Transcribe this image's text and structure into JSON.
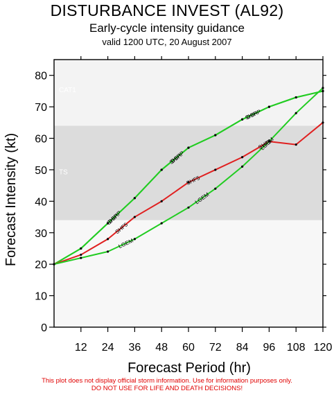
{
  "header": {
    "title": "DISTURBANCE INVEST (AL92)",
    "subtitle": "Early-cycle intensity guidance",
    "valid": "valid 1200 UTC, 20 August 2007"
  },
  "disclaimer": {
    "line1": "This plot does not display official storm information. Use for information purposes only.",
    "line2": "DO NOT USE FOR LIFE AND DEATH DECISIONS!"
  },
  "chart_data": {
    "type": "line",
    "xlabel": "Forecast Period (hr)",
    "ylabel": "Forecast Intensity (kt)",
    "xlim": [
      0,
      120
    ],
    "ylim": [
      0,
      85
    ],
    "xticks": [
      12,
      24,
      36,
      48,
      60,
      72,
      84,
      96,
      108,
      120
    ],
    "yticks": [
      0,
      10,
      20,
      30,
      40,
      50,
      60,
      70,
      80
    ],
    "bands": [
      {
        "name": "TS",
        "from": 34,
        "to": 64,
        "color": "#dcdcdc"
      },
      {
        "name": "CAT1",
        "from": 64,
        "to": 85,
        "color": "#f3f3f3"
      }
    ],
    "background_below": "#f7f7f7",
    "series": [
      {
        "name": "SHIP",
        "color": "#22cc22",
        "x": [
          0,
          12,
          24,
          36,
          48,
          60,
          72,
          84,
          96,
          108,
          120
        ],
        "values": [
          20,
          25,
          33,
          41,
          50,
          57,
          61,
          66,
          70,
          73,
          75
        ],
        "labels": [
          {
            "x": 26,
            "text": "SHIP"
          },
          {
            "x": 54,
            "text": "SHIP"
          },
          {
            "x": 88,
            "text": "SHIP"
          }
        ]
      },
      {
        "name": "DSHP",
        "color": "#22cc22",
        "x": [
          0,
          12,
          24,
          36,
          48,
          60,
          72,
          84,
          96,
          108,
          120
        ],
        "values": [
          20,
          25,
          33,
          41,
          50,
          57,
          61,
          66,
          70,
          73,
          75
        ],
        "labels": [
          {
            "x": 27,
            "text": "DSHP"
          },
          {
            "x": 55,
            "text": "DSHP"
          },
          {
            "x": 89,
            "text": "DSHP"
          }
        ]
      },
      {
        "name": "SHF5",
        "color": "#e02020",
        "x": [
          0,
          12,
          24,
          36,
          48,
          60,
          72,
          84,
          96,
          108,
          120
        ],
        "values": [
          20,
          23,
          28,
          35,
          40,
          46,
          50,
          54,
          59,
          58,
          65
        ],
        "labels": [
          {
            "x": 30,
            "text": "SHF5"
          },
          {
            "x": 62,
            "text": "SHF5"
          },
          {
            "x": 94,
            "text": "SHF5"
          }
        ]
      },
      {
        "name": "LGEM",
        "color": "#22cc22",
        "x": [
          0,
          12,
          24,
          36,
          48,
          60,
          72,
          84,
          96,
          108,
          120
        ],
        "values": [
          20,
          22,
          24,
          28,
          33,
          38,
          44,
          51,
          59,
          68,
          76
        ],
        "labels": [
          {
            "x": 32,
            "text": "LGEM"
          },
          {
            "x": 66,
            "text": "LGEM"
          },
          {
            "x": 95,
            "text": "LGEM"
          }
        ]
      }
    ]
  }
}
